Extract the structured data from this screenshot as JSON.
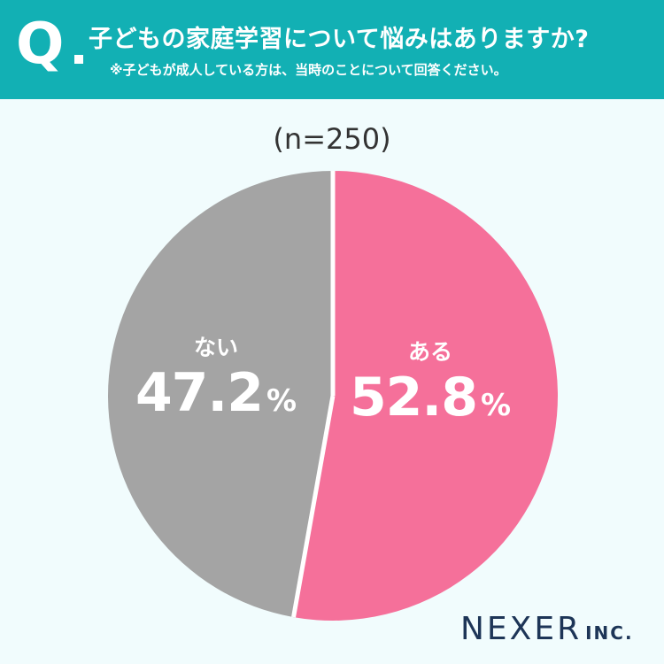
{
  "header": {
    "q_mark": "Q",
    "title": "子どもの家庭学習について悩みはありますか?",
    "note": "※子どもが成人している方は、当時のことについて回答ください。"
  },
  "sample_size": "(n=250)",
  "chart_data": {
    "type": "pie",
    "slices": [
      {
        "label": "ある",
        "value": 52.8,
        "display": "52.8",
        "color": "#f5709a"
      },
      {
        "label": "ない",
        "value": 47.2,
        "display": "47.2",
        "color": "#a4a4a4"
      }
    ],
    "unit": "%",
    "start_angle": "top",
    "direction": "clockwise",
    "separator_color": "#ffffff"
  },
  "logo": {
    "main": "NEXER",
    "sub": "INC."
  },
  "colors": {
    "header_bg": "#12b0b4",
    "page_bg": "#f1fcfd",
    "logo": "#1d3557"
  }
}
